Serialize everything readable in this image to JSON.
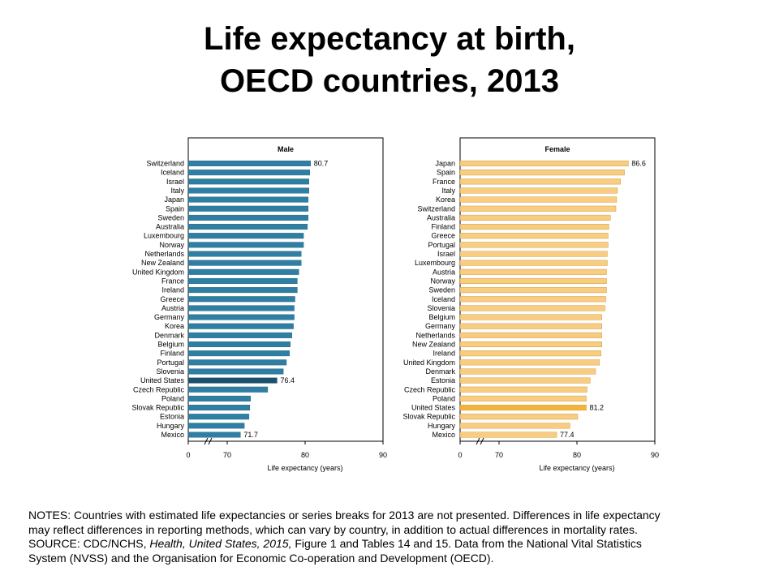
{
  "title": {
    "line1": "Life expectancy at birth,",
    "line2": "OECD countries, 2013"
  },
  "chart_data": [
    {
      "type": "bar",
      "orientation": "horizontal",
      "title": "Male",
      "xlabel": "Life expectancy (years)",
      "xlim": [
        0,
        90
      ],
      "axis_break": "between 0 and 70",
      "x_ticks": [
        "0",
        "70",
        "80",
        "90"
      ],
      "bar_color": "#2e7fa3",
      "highlight_color": "#1d4f6e",
      "highlight_category": "United States",
      "categories": [
        "Switzerland",
        "Iceland",
        "Israel",
        "Italy",
        "Japan",
        "Spain",
        "Sweden",
        "Australia",
        "Luxembourg",
        "Norway",
        "Netherlands",
        "New Zealand",
        "United Kingdom",
        "France",
        "Ireland",
        "Greece",
        "Austria",
        "Germany",
        "Korea",
        "Denmark",
        "Belgium",
        "Finland",
        "Portugal",
        "Slovenia",
        "United States",
        "Czech Republic",
        "Poland",
        "Slovak Republic",
        "Estonia",
        "Hungary",
        "Mexico"
      ],
      "values": [
        80.7,
        80.6,
        80.5,
        80.5,
        80.4,
        80.4,
        80.4,
        80.3,
        79.8,
        79.8,
        79.5,
        79.5,
        79.2,
        79.0,
        79.0,
        78.7,
        78.6,
        78.6,
        78.5,
        78.3,
        78.1,
        78.0,
        77.6,
        77.2,
        76.4,
        75.2,
        73.0,
        72.9,
        72.8,
        72.2,
        71.7
      ],
      "value_labels": {
        "Switzerland": "80.7",
        "United States": "76.4",
        "Mexico": "71.7"
      }
    },
    {
      "type": "bar",
      "orientation": "horizontal",
      "title": "Female",
      "xlabel": "Life expectancy (years)",
      "xlim": [
        0,
        90
      ],
      "axis_break": "between 0 and 70",
      "x_ticks": [
        "0",
        "70",
        "80",
        "90"
      ],
      "bar_color": "#f8cd82",
      "highlight_color": "#f4b43c",
      "highlight_category": "United States",
      "categories": [
        "Japan",
        "Spain",
        "France",
        "Italy",
        "Korea",
        "Switzerland",
        "Australia",
        "Finland",
        "Greece",
        "Portugal",
        "Israel",
        "Luxembourg",
        "Austria",
        "Norway",
        "Sweden",
        "Iceland",
        "Slovenia",
        "Belgium",
        "Germany",
        "Netherlands",
        "New Zealand",
        "Ireland",
        "United Kingdom",
        "Denmark",
        "Estonia",
        "Czech Republic",
        "Poland",
        "United States",
        "Slovak Republic",
        "Hungary",
        "Mexico"
      ],
      "values": [
        86.6,
        86.1,
        85.6,
        85.2,
        85.1,
        85.0,
        84.3,
        84.1,
        84.0,
        84.0,
        83.9,
        83.9,
        83.8,
        83.8,
        83.8,
        83.7,
        83.6,
        83.2,
        83.2,
        83.2,
        83.2,
        83.1,
        82.9,
        82.4,
        81.7,
        81.3,
        81.2,
        81.2,
        80.1,
        79.1,
        77.4
      ],
      "value_labels": {
        "Japan": "86.6",
        "United States": "81.2",
        "Mexico": "77.4"
      }
    }
  ],
  "notes": {
    "line1": "NOTES: Countries with estimated life expectancies or series breaks for 2013 are not presented. Differences in life expectancy",
    "line2": "may reflect differences in reporting methods, which can vary by country, in addition to actual differences in mortality rates.",
    "line3_pre": "SOURCE: CDC/NCHS, ",
    "line3_italic": "Health, United States, 2015,",
    "line3_post": " Figure 1 and Tables 14 and 15. Data from the National Vital Statistics",
    "line4": "System (NVSS) and the Organisation for Economic Co-operation and Development (OECD)."
  }
}
